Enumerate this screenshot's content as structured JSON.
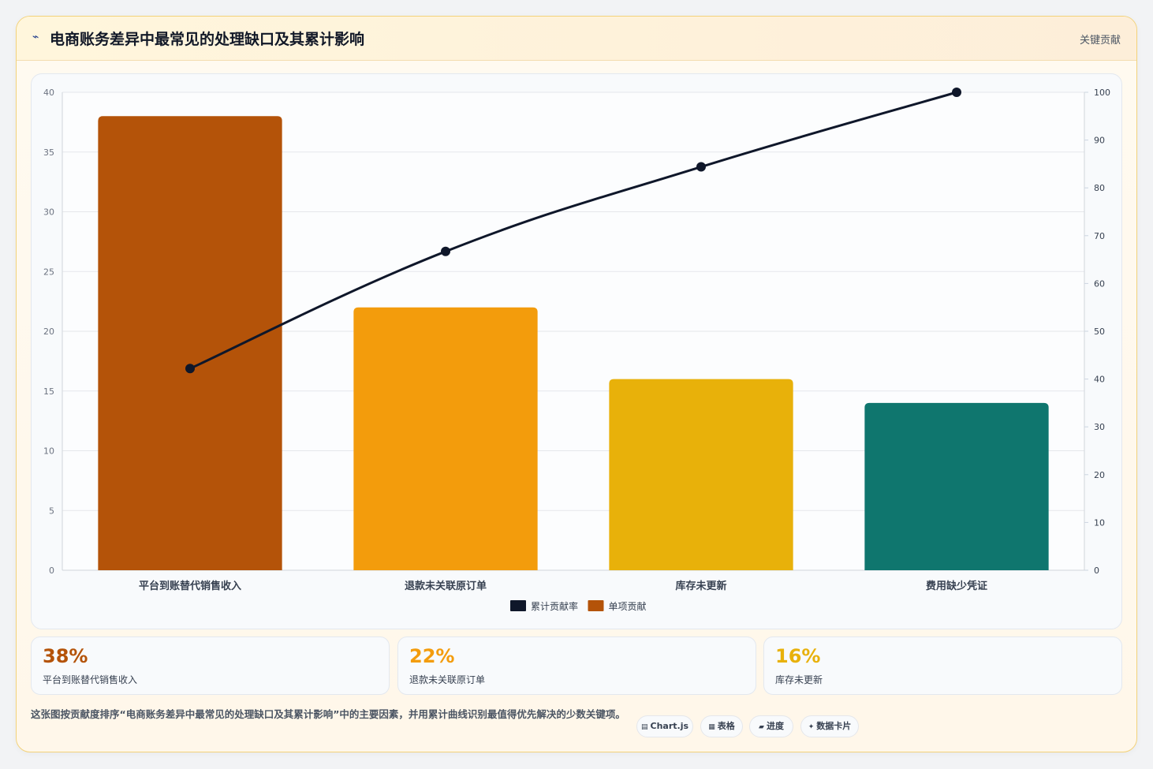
{
  "header": {
    "title": "电商账务差异中最常见的处理缺口及其累计影响",
    "tag": "关键贡献"
  },
  "chart_data": {
    "type": "bar",
    "categories": [
      "平台到账替代销售收入",
      "退款未关联原订单",
      "库存未更新",
      "费用缺少凭证"
    ],
    "series": [
      {
        "name": "单项贡献",
        "type": "bar",
        "axis": "left",
        "values": [
          38,
          22,
          16,
          14
        ],
        "colors": [
          "#b45309",
          "#f39c0c",
          "#e8b10a",
          "#0f766e"
        ]
      },
      {
        "name": "累计贡献率",
        "type": "line",
        "axis": "right",
        "values": [
          42.2,
          66.7,
          84.4,
          100
        ],
        "color": "#0f172a"
      }
    ],
    "y_left": {
      "ylim": [
        0,
        40
      ],
      "ticks": [
        0,
        5,
        10,
        15,
        20,
        25,
        30,
        35,
        40
      ]
    },
    "y_right": {
      "ylim": [
        0,
        100
      ],
      "ticks": [
        0,
        10,
        20,
        30,
        40,
        50,
        60,
        70,
        80,
        90,
        100
      ]
    },
    "legend": {
      "placement": "bottom-center",
      "order": [
        "累计贡献率",
        "单项贡献"
      ]
    },
    "grid": true
  },
  "stats": [
    {
      "value": "38%",
      "label": "平台到账替代销售收入",
      "color": "#b45309"
    },
    {
      "value": "22%",
      "label": "退款未关联原订单",
      "color": "#f39c0c"
    },
    {
      "value": "16%",
      "label": "库存未更新",
      "color": "#e8b10a"
    }
  ],
  "description": "这张图按贡献度排序“电商账务差异中最常见的处理缺口及其累计影响”中的主要因素，并用累计曲线识别最值得优先解决的少数关键项。",
  "tags": [
    {
      "icon": "chart-icon",
      "glyph": "▤",
      "label": "Chart.js"
    },
    {
      "icon": "table-icon",
      "glyph": "▦",
      "label": "表格"
    },
    {
      "icon": "progress-icon",
      "glyph": "▰",
      "label": "进度"
    },
    {
      "icon": "sparkle-icon",
      "glyph": "✦",
      "label": "数据卡片"
    }
  ]
}
